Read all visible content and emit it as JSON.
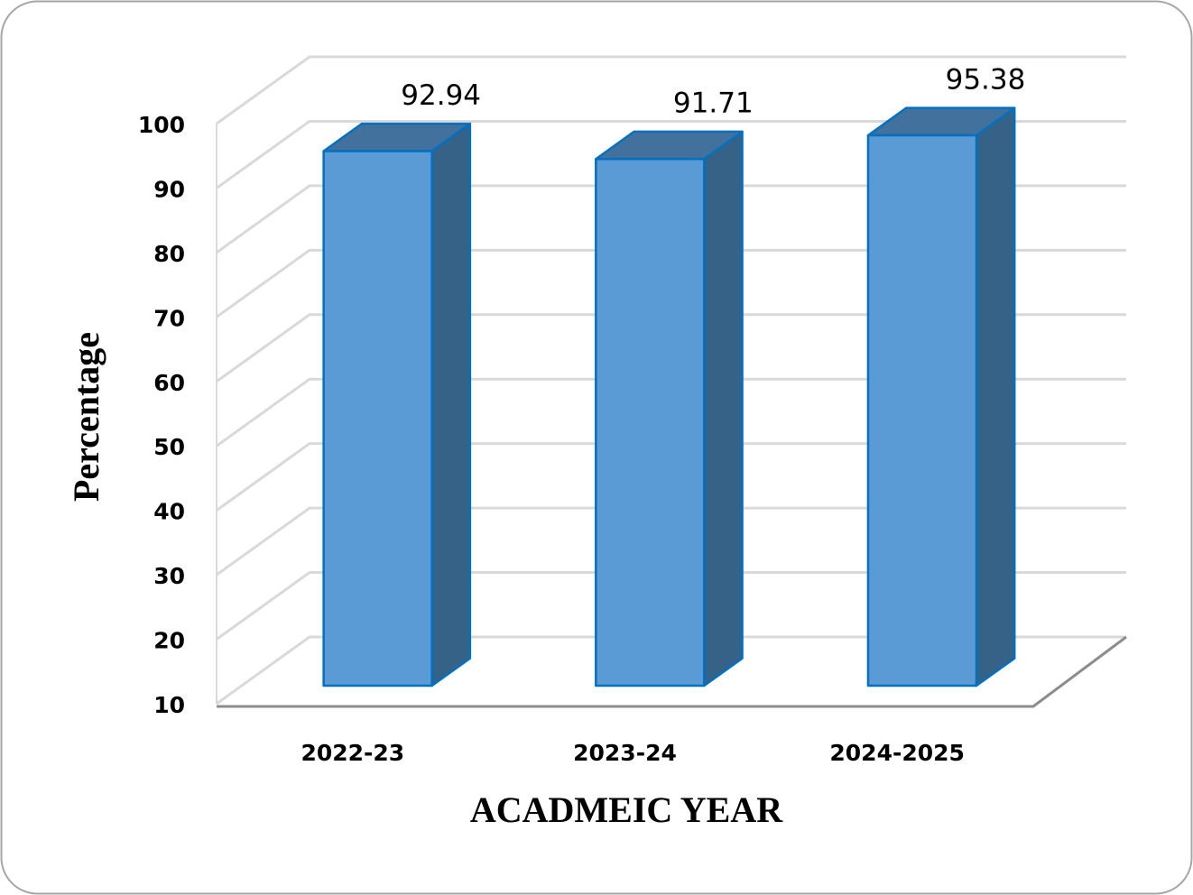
{
  "chart_data": {
    "type": "bar3d",
    "categories": [
      "2022-23",
      "2023-24",
      "2024-2025"
    ],
    "values": [
      92.94,
      91.71,
      95.38
    ],
    "y_label": "Percentage",
    "x_label": "ACADMEIC YEAR",
    "ylim": [
      10,
      100
    ],
    "yticks": [
      10,
      20,
      30,
      40,
      50,
      60,
      70,
      80,
      90,
      100
    ],
    "grid": true,
    "color": "#5b9bd5"
  }
}
